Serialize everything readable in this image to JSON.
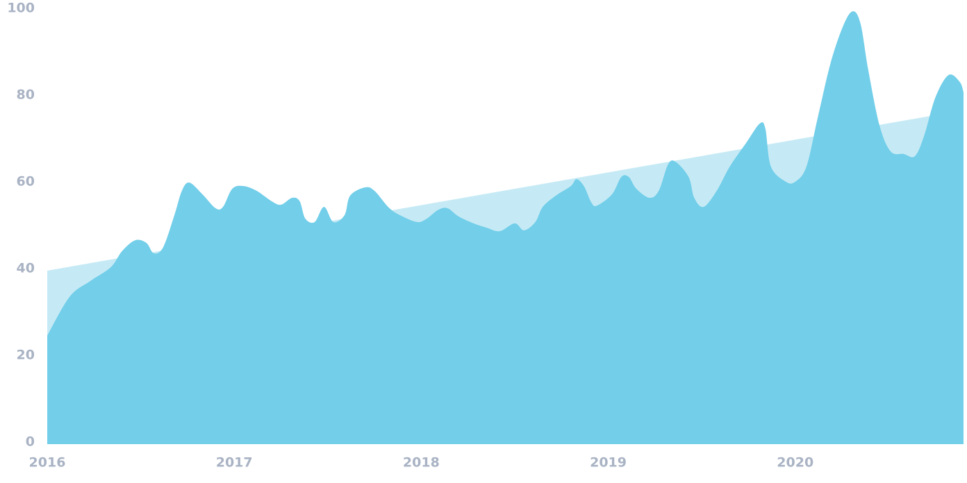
{
  "chart_data": {
    "type": "area",
    "xlim": [
      2016,
      2020.9
    ],
    "xticks": [
      2016,
      2017,
      2018,
      2019,
      2020
    ],
    "ylim": [
      0,
      100
    ],
    "yticks": [
      0,
      20,
      40,
      60,
      80,
      100
    ],
    "grid": false,
    "series": [
      {
        "color": "#72cee9",
        "x": [
          2016.0,
          2016.12,
          2016.23,
          2016.34,
          2016.4,
          2016.47,
          2016.53,
          2016.57,
          2016.62,
          2016.68,
          2016.72,
          2016.76,
          2016.83,
          2016.9,
          2016.94,
          2016.99,
          2017.05,
          2017.12,
          2017.2,
          2017.25,
          2017.31,
          2017.35,
          2017.38,
          2017.43,
          2017.48,
          2017.53,
          2017.59,
          2017.62,
          2017.7,
          2017.75,
          2017.83,
          2017.9,
          2017.98,
          2018.03,
          2018.09,
          2018.14,
          2018.2,
          2018.28,
          2018.35,
          2018.42,
          2018.5,
          2018.55,
          2018.61,
          2018.65,
          2018.72,
          2018.8,
          2018.83,
          2018.87,
          2018.91,
          2018.94,
          2019.02,
          2019.07,
          2019.11,
          2019.15,
          2019.22,
          2019.27,
          2019.32,
          2019.36,
          2019.43,
          2019.46,
          2019.51,
          2019.58,
          2019.65,
          2019.74,
          2019.81,
          2019.84,
          2019.87,
          2019.95,
          2020.0,
          2020.06,
          2020.12,
          2020.19,
          2020.26,
          2020.31,
          2020.35,
          2020.39,
          2020.45,
          2020.51,
          2020.58,
          2020.64,
          2020.69,
          2020.75,
          2020.82,
          2020.88,
          2020.9
        ],
        "values": [
          25,
          34,
          37.6,
          40.8,
          44.5,
          47,
          46.4,
          44,
          45.4,
          52.8,
          58.4,
          60.3,
          57.6,
          54.4,
          54.7,
          58.9,
          59.5,
          58.4,
          56,
          55.2,
          56.8,
          56,
          52,
          51.2,
          54.7,
          51.2,
          52.8,
          57.3,
          59.2,
          58.4,
          54.4,
          52.5,
          51.2,
          52,
          54,
          54.4,
          52.5,
          50.9,
          49.9,
          49.1,
          50.9,
          49.3,
          51.2,
          54.7,
          57.3,
          59.5,
          61.1,
          59.5,
          55.7,
          55,
          57.6,
          61.6,
          61.6,
          58.9,
          56.8,
          58.4,
          64.5,
          65.1,
          61.6,
          56.8,
          54.7,
          58.4,
          64,
          69.6,
          73.9,
          72.8,
          64,
          60.5,
          60.5,
          64,
          75.2,
          88,
          96.8,
          99.8,
          96.8,
          86.4,
          73.6,
          67.5,
          66.9,
          66.4,
          71.2,
          80,
          85.1,
          83.5,
          81.1
        ]
      },
      {
        "color": "#c6eaf5",
        "x": [
          2016.0,
          2020.9
        ],
        "values": [
          40,
          77
        ]
      }
    ]
  }
}
